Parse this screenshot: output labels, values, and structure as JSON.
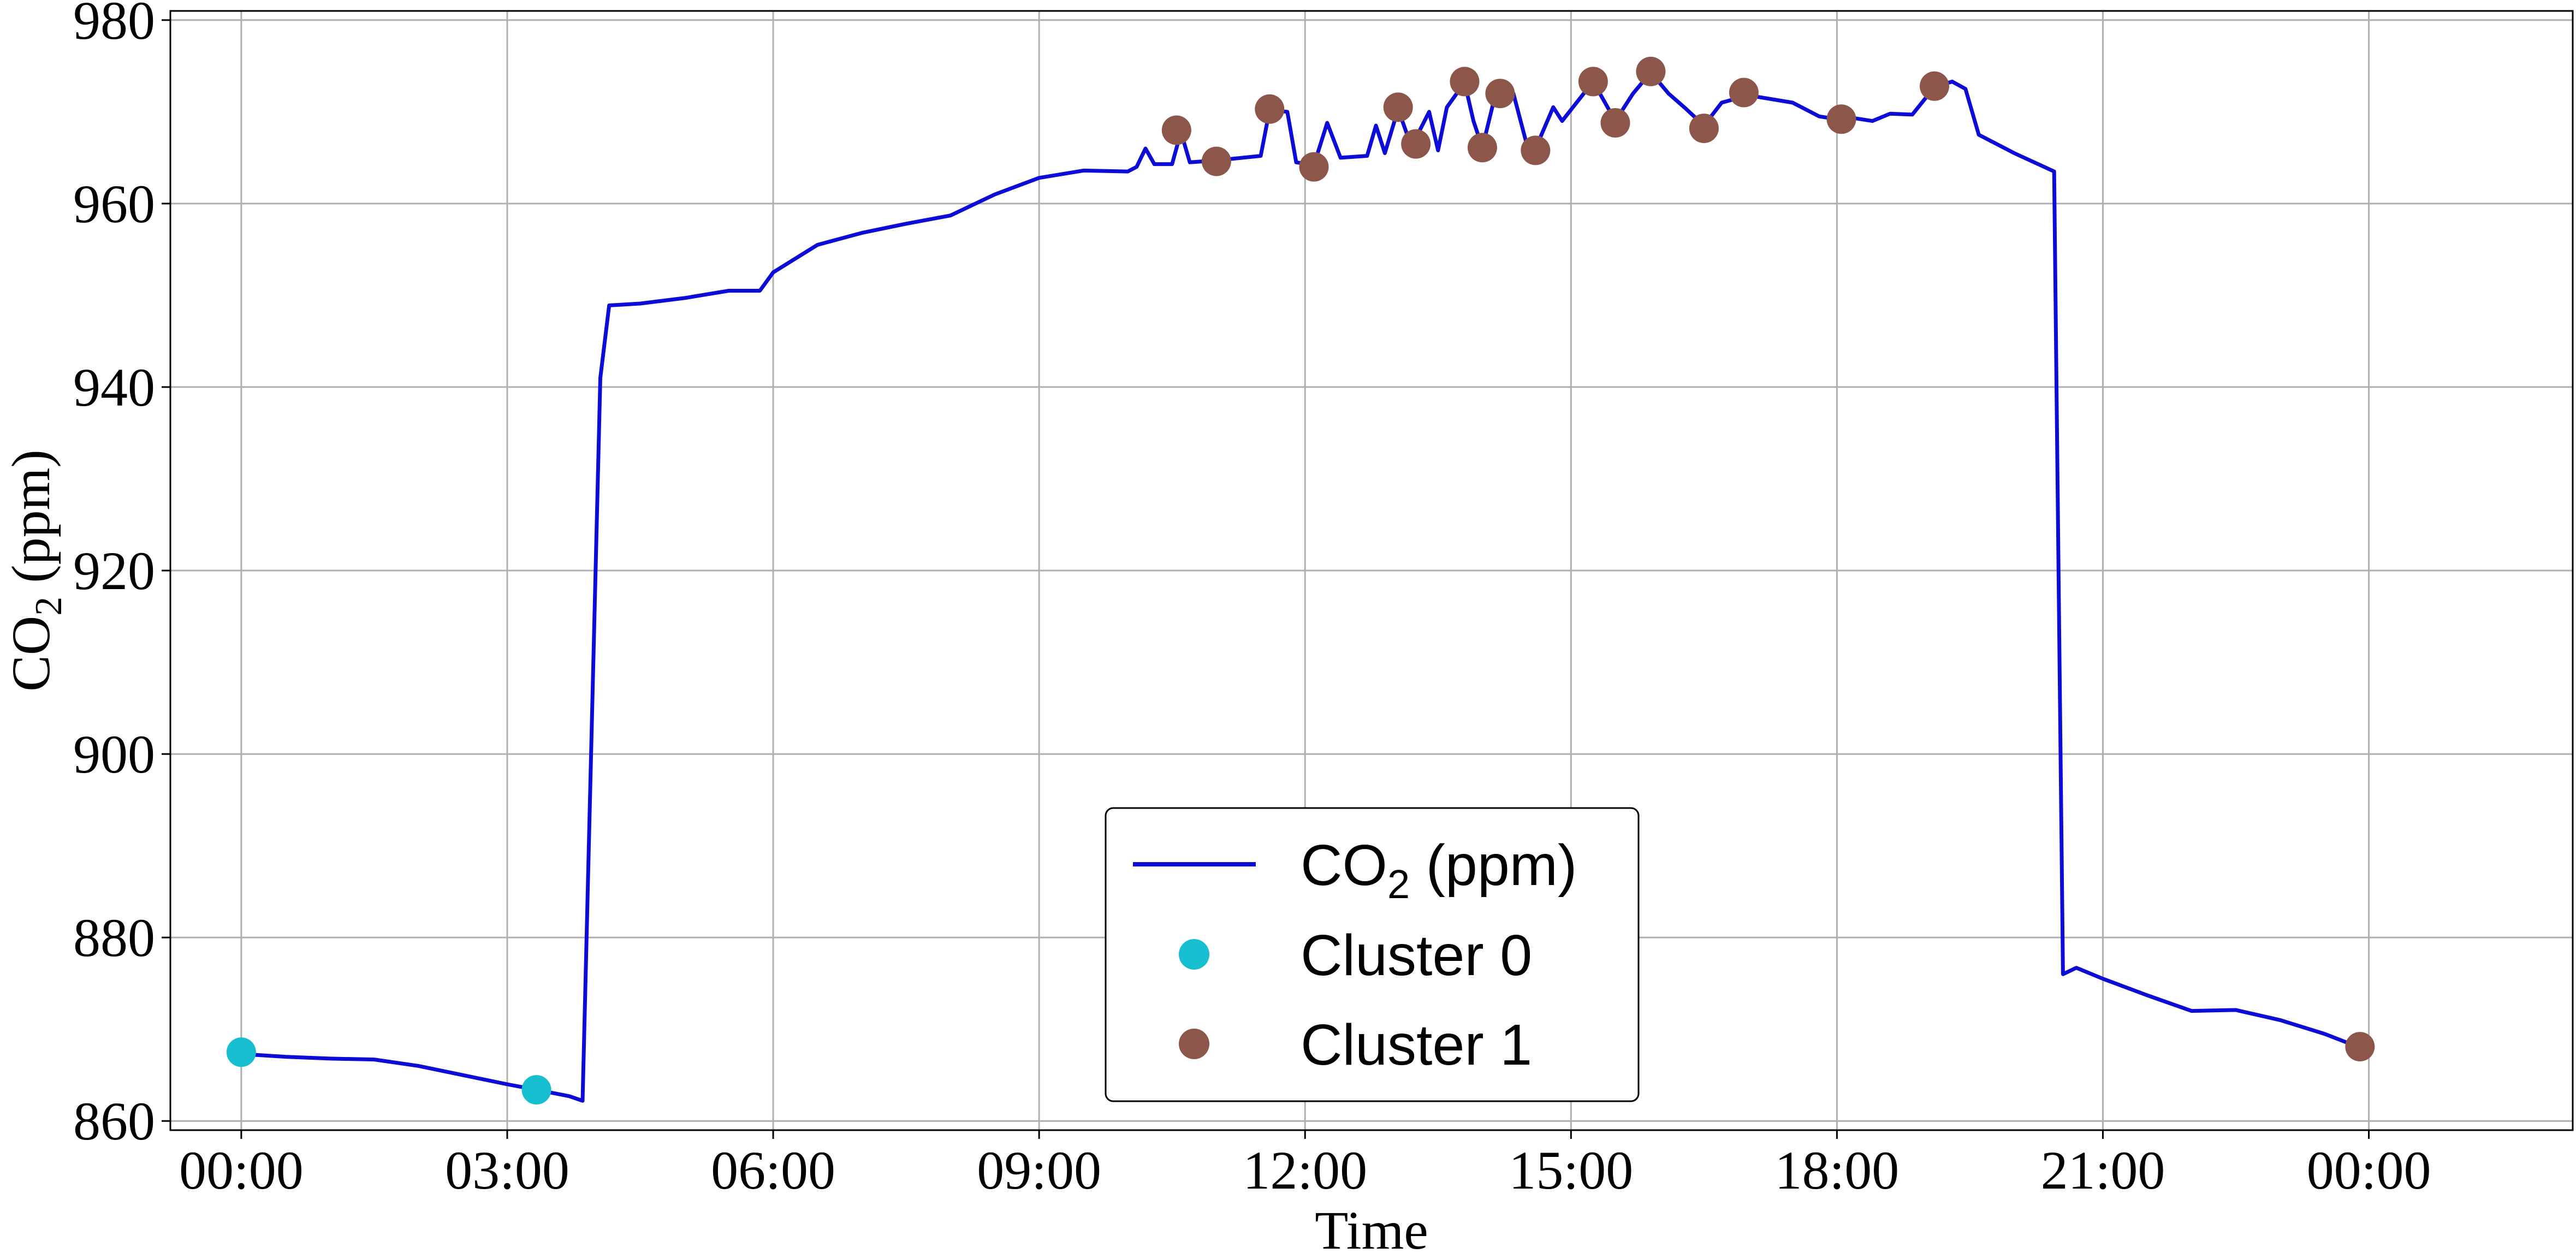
{
  "chart_data": {
    "type": "line",
    "xlabel": "Time",
    "ylabel": "CO",
    "ylabel_sub": "2",
    "ylabel_suffix": " (ppm)",
    "xlim": [
      -0.8,
      26.3
    ],
    "ylim": [
      859,
      981
    ],
    "x_ticks": [
      {
        "value": 0,
        "label": "00:00"
      },
      {
        "value": 3,
        "label": "03:00"
      },
      {
        "value": 6,
        "label": "06:00"
      },
      {
        "value": 9,
        "label": "09:00"
      },
      {
        "value": 12,
        "label": "12:00"
      },
      {
        "value": 15,
        "label": "15:00"
      },
      {
        "value": 18,
        "label": "18:00"
      },
      {
        "value": 21,
        "label": "21:00"
      },
      {
        "value": 24,
        "label": "00:00"
      }
    ],
    "y_ticks": [
      860,
      880,
      900,
      920,
      940,
      960,
      980
    ],
    "grid": true,
    "legend": {
      "position": "bottom-center",
      "entries": [
        {
          "label": "CO",
          "sub": "2",
          "suffix": " (ppm)",
          "kind": "line",
          "color": "#0c0cd6"
        },
        {
          "label": "Cluster 0",
          "kind": "point",
          "color": "#17becf"
        },
        {
          "label": "Cluster 1",
          "kind": "point",
          "color": "#8c564b"
        }
      ]
    },
    "series": [
      {
        "kind": "line",
        "color": "#0c0cd6",
        "points": [
          [
            0.0,
            867.3
          ],
          [
            0.5,
            867.0
          ],
          [
            1.0,
            866.8
          ],
          [
            1.5,
            866.7
          ],
          [
            2.0,
            866.0
          ],
          [
            2.5,
            865.0
          ],
          [
            3.0,
            864.0
          ],
          [
            3.33,
            863.4
          ],
          [
            3.7,
            862.7
          ],
          [
            3.85,
            862.2
          ],
          [
            4.05,
            941.0
          ],
          [
            4.15,
            948.9
          ],
          [
            4.5,
            949.1
          ],
          [
            5.0,
            949.7
          ],
          [
            5.5,
            950.5
          ],
          [
            5.85,
            950.5
          ],
          [
            6.0,
            952.5
          ],
          [
            6.5,
            955.5
          ],
          [
            7.0,
            956.8
          ],
          [
            7.5,
            957.8
          ],
          [
            8.0,
            958.7
          ],
          [
            8.5,
            961.0
          ],
          [
            9.0,
            962.8
          ],
          [
            9.5,
            963.6
          ],
          [
            10.0,
            963.5
          ],
          [
            10.1,
            964.0
          ],
          [
            10.2,
            966.0
          ],
          [
            10.3,
            964.3
          ],
          [
            10.5,
            964.3
          ],
          [
            10.6,
            967.8
          ],
          [
            10.7,
            964.5
          ],
          [
            11.0,
            964.7
          ],
          [
            11.5,
            965.2
          ],
          [
            11.6,
            970.2
          ],
          [
            11.8,
            970.0
          ],
          [
            11.9,
            964.5
          ],
          [
            12.1,
            964.2
          ],
          [
            12.25,
            968.8
          ],
          [
            12.4,
            965.0
          ],
          [
            12.7,
            965.2
          ],
          [
            12.8,
            968.5
          ],
          [
            12.9,
            965.5
          ],
          [
            13.05,
            970.3
          ],
          [
            13.2,
            966.2
          ],
          [
            13.4,
            970.0
          ],
          [
            13.5,
            965.8
          ],
          [
            13.6,
            970.5
          ],
          [
            13.8,
            973.2
          ],
          [
            13.9,
            969.0
          ],
          [
            14.0,
            966.1
          ],
          [
            14.15,
            972.0
          ],
          [
            14.35,
            972.0
          ],
          [
            14.5,
            966.5
          ],
          [
            14.6,
            966.0
          ],
          [
            14.8,
            970.5
          ],
          [
            14.9,
            969.0
          ],
          [
            15.25,
            973.3
          ],
          [
            15.5,
            969.0
          ],
          [
            15.7,
            972.0
          ],
          [
            15.9,
            974.3
          ],
          [
            16.1,
            972.0
          ],
          [
            16.3,
            970.3
          ],
          [
            16.5,
            968.5
          ],
          [
            16.7,
            971.0
          ],
          [
            17.0,
            971.8
          ],
          [
            17.5,
            971.0
          ],
          [
            17.8,
            969.5
          ],
          [
            18.0,
            969.2
          ],
          [
            18.2,
            969.3
          ],
          [
            18.4,
            969.0
          ],
          [
            18.6,
            969.8
          ],
          [
            18.85,
            969.7
          ],
          [
            19.1,
            972.7
          ],
          [
            19.3,
            973.3
          ],
          [
            19.45,
            972.5
          ],
          [
            19.6,
            967.5
          ],
          [
            20.0,
            965.5
          ],
          [
            20.45,
            963.5
          ],
          [
            20.55,
            876.0
          ],
          [
            20.7,
            876.7
          ],
          [
            21.0,
            875.5
          ],
          [
            21.5,
            873.7
          ],
          [
            22.0,
            872.0
          ],
          [
            22.5,
            872.1
          ],
          [
            23.0,
            871.0
          ],
          [
            23.5,
            869.5
          ],
          [
            23.9,
            868.0
          ]
        ]
      },
      {
        "kind": "points",
        "name": "Cluster 0",
        "color": "#17becf",
        "points": [
          [
            0.0,
            867.5
          ],
          [
            3.33,
            863.4
          ]
        ]
      },
      {
        "kind": "points",
        "name": "Cluster 1",
        "color": "#8c564b",
        "points": [
          [
            10.55,
            968.0
          ],
          [
            11.0,
            964.6
          ],
          [
            11.6,
            970.3
          ],
          [
            12.1,
            964.0
          ],
          [
            13.05,
            970.5
          ],
          [
            13.25,
            966.5
          ],
          [
            13.8,
            973.3
          ],
          [
            14.0,
            966.1
          ],
          [
            14.2,
            972.0
          ],
          [
            14.6,
            965.8
          ],
          [
            15.25,
            973.3
          ],
          [
            15.5,
            968.8
          ],
          [
            15.9,
            974.4
          ],
          [
            16.5,
            968.2
          ],
          [
            16.95,
            972.1
          ],
          [
            18.05,
            969.2
          ],
          [
            19.1,
            972.8
          ],
          [
            23.9,
            868.1
          ]
        ]
      }
    ]
  }
}
